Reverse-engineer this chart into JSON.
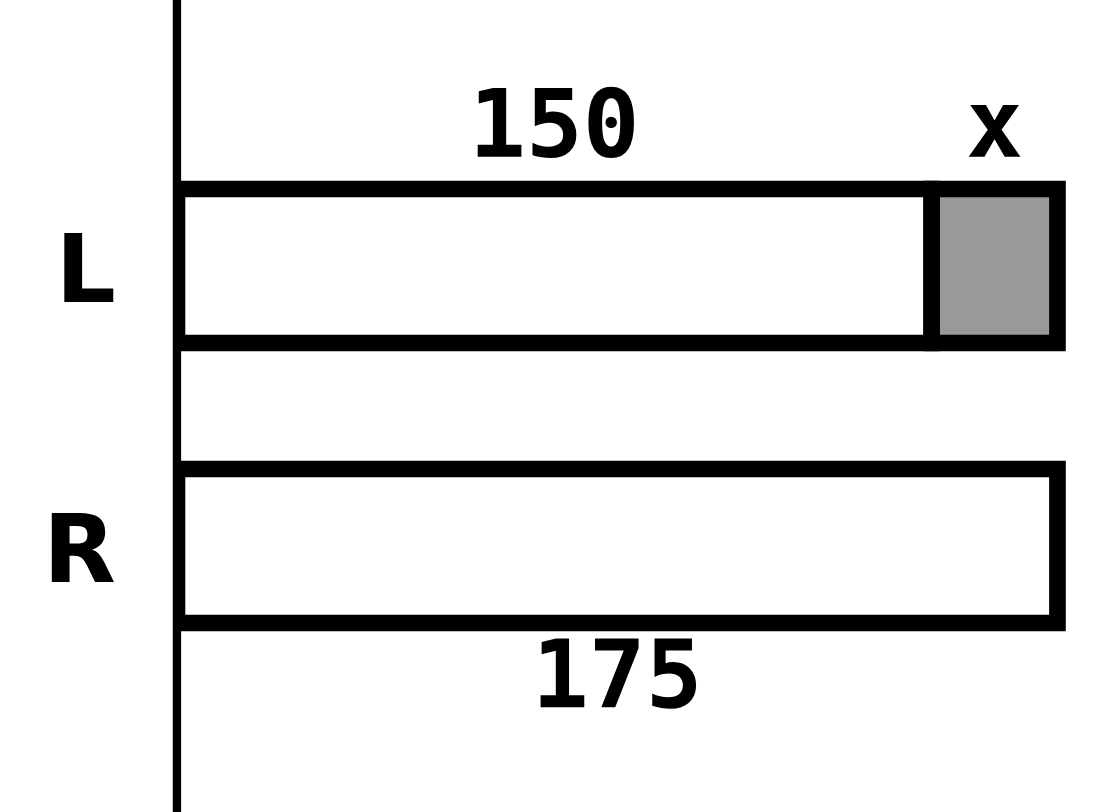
{
  "chart_data": {
    "type": "bar",
    "orientation": "horizontal",
    "stacked": true,
    "categories": [
      "L",
      "R"
    ],
    "series": [
      {
        "color": "#ffffff",
        "values": [
          150,
          175
        ],
        "value_labels": [
          "150",
          "175"
        ]
      },
      {
        "color": "#999999",
        "values": [
          25,
          null
        ],
        "value_labels": [
          "x",
          null
        ]
      }
    ],
    "tick_labels": "y",
    "grid": false,
    "legend": false
  }
}
